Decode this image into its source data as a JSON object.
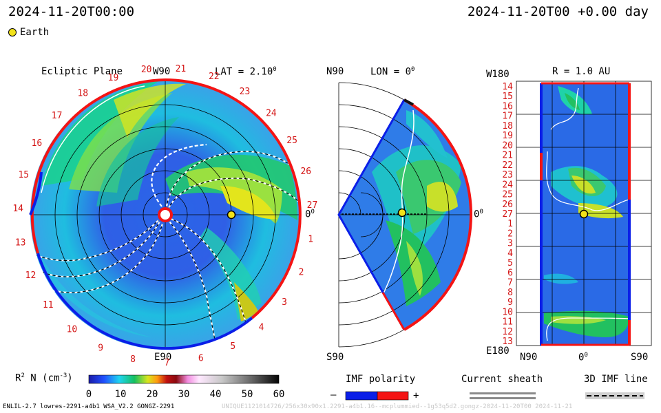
{
  "header": {
    "time_left": "2024-11-20T00:00",
    "time_right": "2024-11-20T00 +0.00 day",
    "legend_earth": "Earth"
  },
  "ecliptic": {
    "title": "Ecliptic Plane",
    "lat_label": "LAT = 2.10",
    "lat_sup": "0",
    "top_label": "W90",
    "bottom_label": "E90",
    "right_label": "0",
    "right_sup": "0",
    "ring_numbers": [
      "1",
      "2",
      "3",
      "4",
      "5",
      "6",
      "7",
      "8",
      "9",
      "10",
      "11",
      "12",
      "13",
      "14",
      "15",
      "16",
      "17",
      "18",
      "19",
      "20",
      "21",
      "22",
      "23",
      "24",
      "25",
      "26",
      "27"
    ]
  },
  "meridional": {
    "top_left": "N90",
    "lon_label": "LON = 0",
    "lon_sup": "0",
    "bottom_left": "S90",
    "right_label": "0",
    "right_sup": "0"
  },
  "latlon": {
    "corner_tl": "W180",
    "title": "R = 1.0 AU",
    "corner_bl": "E180",
    "x_left": "N90",
    "x_mid": "0",
    "x_mid_sup": "0",
    "x_right": "S90",
    "row_labels": [
      "14",
      "15",
      "16",
      "17",
      "18",
      "19",
      "20",
      "21",
      "22",
      "23",
      "24",
      "25",
      "26",
      "27",
      "1",
      "2",
      "3",
      "4",
      "5",
      "6",
      "7",
      "8",
      "9",
      "10",
      "11",
      "12",
      "13"
    ]
  },
  "colorbar": {
    "label_main": "R",
    "label_sup": "2",
    "label_rest": " N (cm",
    "label_exp": "-3",
    "label_close": ")",
    "ticks": [
      "0",
      "10",
      "20",
      "30",
      "40",
      "50",
      "60"
    ]
  },
  "imf": {
    "title": "IMF polarity",
    "minus": "–",
    "plus": "+",
    "colors": {
      "negative": "#0a1ee8",
      "positive": "#f41414"
    }
  },
  "sheath": {
    "title": "Current sheath"
  },
  "imf3d": {
    "title": "3D IMF line"
  },
  "footer": {
    "left": "ENLIL-2.7 lowres-2291-a4b1 WSA_V2.2 GONGZ-2291",
    "right": "UNIQUE1121014726/256x30x90x1.2291-a4b1.16--mcplummied--1g53q5d2.gongz-2024-11-20T00 2024-11-21"
  }
}
